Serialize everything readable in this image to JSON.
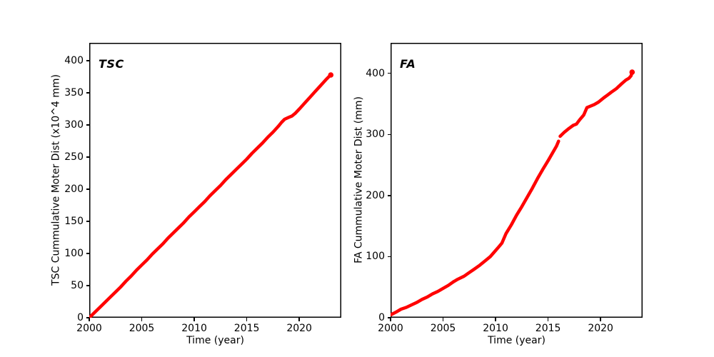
{
  "figure": {
    "background": "#ffffff",
    "line_color": "#ff0000",
    "spine_color": "#000000"
  },
  "chart_data": [
    {
      "type": "line",
      "panel_label": "TSC",
      "xlabel": "Time (year)",
      "ylabel": "TSC Cummulative Moter Dist (x10^4 mm)",
      "xlim": [
        2000,
        2024
      ],
      "ylim": [
        0,
        428
      ],
      "xticks": [
        2000,
        2005,
        2010,
        2015,
        2020
      ],
      "yticks": [
        0,
        50,
        100,
        150,
        200,
        250,
        300,
        350,
        400
      ],
      "grid": false,
      "legend": "none",
      "line_color": "#ff0000",
      "line_width": 4.5,
      "segments": [
        [
          [
            2000,
            0
          ],
          [
            2000.5,
            8
          ],
          [
            2001,
            16
          ],
          [
            2001.5,
            24
          ],
          [
            2002,
            32
          ],
          [
            2002.5,
            40
          ],
          [
            2003,
            48
          ],
          [
            2003.5,
            57
          ],
          [
            2004,
            65
          ],
          [
            2004.5,
            74
          ],
          [
            2005,
            82
          ],
          [
            2005.5,
            90
          ],
          [
            2006,
            99
          ],
          [
            2006.5,
            107
          ],
          [
            2007,
            115
          ],
          [
            2007.5,
            124
          ],
          [
            2008,
            132
          ],
          [
            2008.5,
            140
          ],
          [
            2009,
            148
          ],
          [
            2009.5,
            157
          ],
          [
            2010,
            165
          ],
          [
            2010.5,
            173
          ],
          [
            2011,
            181
          ],
          [
            2011.5,
            190
          ],
          [
            2012,
            198
          ],
          [
            2012.5,
            206
          ],
          [
            2013,
            215
          ],
          [
            2013.5,
            223
          ],
          [
            2014,
            231
          ],
          [
            2014.5,
            239
          ],
          [
            2015,
            247
          ],
          [
            2015.5,
            256
          ],
          [
            2016,
            264
          ],
          [
            2016.5,
            272
          ],
          [
            2017,
            281
          ],
          [
            2017.5,
            289
          ],
          [
            2018,
            298
          ],
          [
            2018.3,
            304
          ],
          [
            2018.6,
            309
          ],
          [
            2019,
            312
          ],
          [
            2019.3,
            314
          ],
          [
            2019.6,
            318
          ],
          [
            2020,
            325
          ],
          [
            2020.5,
            334
          ],
          [
            2021,
            343
          ],
          [
            2021.5,
            352
          ],
          [
            2022,
            361
          ],
          [
            2022.5,
            370
          ],
          [
            2022.8,
            375
          ],
          [
            2023,
            378
          ]
        ]
      ]
    },
    {
      "type": "line",
      "panel_label": "FA",
      "xlabel": "Time (year)",
      "ylabel": "FA Cummulative Moter Dist (mm)",
      "xlim": [
        2000,
        2024
      ],
      "ylim": [
        0,
        450
      ],
      "xticks": [
        2000,
        2005,
        2010,
        2015,
        2020
      ],
      "yticks": [
        0,
        100,
        200,
        300,
        400
      ],
      "grid": false,
      "legend": "none",
      "line_color": "#ff0000",
      "line_width": 4.5,
      "segments": [
        [
          [
            2000.05,
            5
          ],
          [
            2000.5,
            9
          ],
          [
            2001,
            14
          ],
          [
            2001.5,
            17
          ],
          [
            2002,
            21
          ],
          [
            2002.5,
            25
          ],
          [
            2003,
            30
          ],
          [
            2003.5,
            34
          ],
          [
            2004,
            39
          ],
          [
            2004.5,
            43
          ],
          [
            2005,
            48
          ],
          [
            2005.5,
            53
          ],
          [
            2006,
            59
          ],
          [
            2006.4,
            63
          ],
          [
            2007,
            68
          ],
          [
            2007.5,
            74
          ],
          [
            2008,
            80
          ],
          [
            2008.5,
            86
          ],
          [
            2009,
            93
          ],
          [
            2009.5,
            100
          ],
          [
            2010,
            110
          ],
          [
            2010.3,
            116
          ],
          [
            2010.6,
            122
          ],
          [
            2011,
            138
          ],
          [
            2011.5,
            152
          ],
          [
            2012,
            168
          ],
          [
            2012.5,
            182
          ],
          [
            2013,
            197
          ],
          [
            2013.5,
            212
          ],
          [
            2014,
            228
          ],
          [
            2014.5,
            243
          ],
          [
            2015,
            257
          ],
          [
            2015.5,
            272
          ],
          [
            2015.8,
            281
          ],
          [
            2016,
            289
          ]
        ],
        [
          [
            2016.15,
            297
          ],
          [
            2016.5,
            303
          ],
          [
            2017,
            310
          ],
          [
            2017.4,
            315
          ],
          [
            2017.7,
            317
          ],
          [
            2018,
            324
          ],
          [
            2018.4,
            332
          ],
          [
            2018.7,
            344
          ],
          [
            2019.4,
            349
          ],
          [
            2019.8,
            353
          ],
          [
            2020.3,
            360
          ],
          [
            2020.7,
            365
          ],
          [
            2021,
            369
          ],
          [
            2021.5,
            375
          ],
          [
            2022,
            383
          ],
          [
            2022.4,
            389
          ],
          [
            2022.7,
            392
          ],
          [
            2022.9,
            396
          ],
          [
            2023,
            402
          ]
        ]
      ]
    }
  ]
}
